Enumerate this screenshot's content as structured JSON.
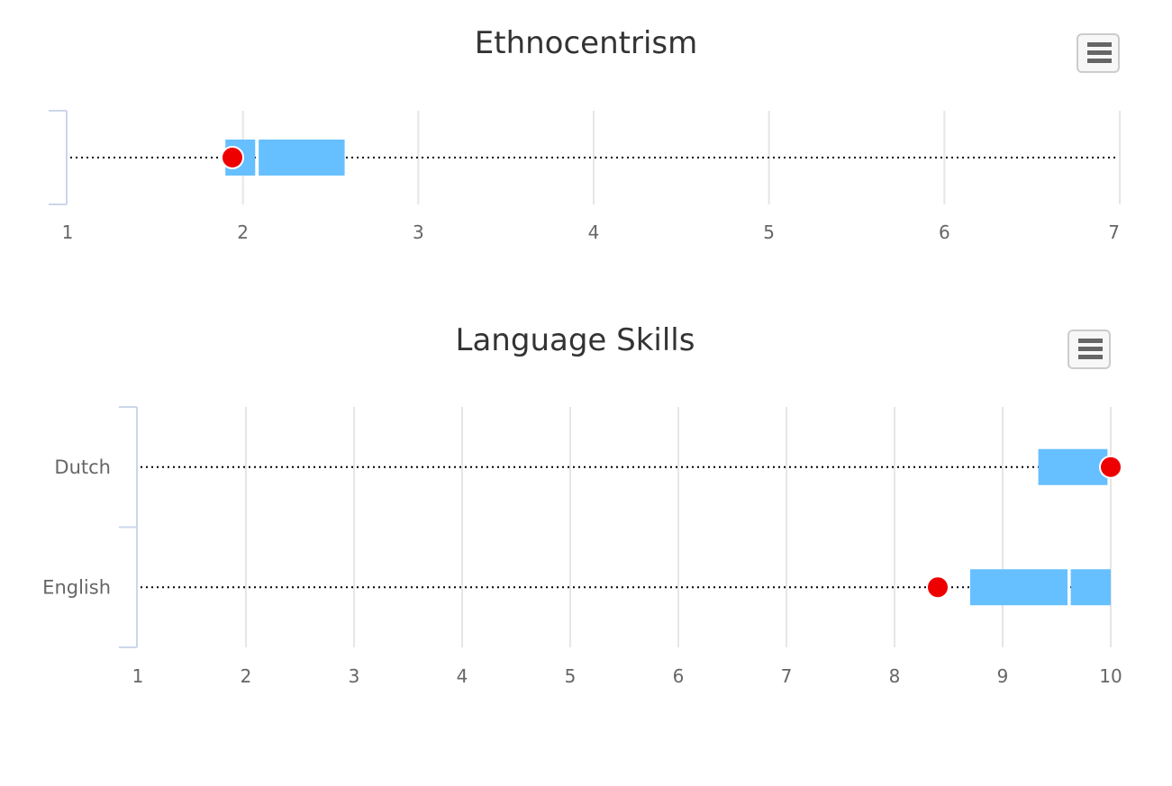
{
  "charts": [
    {
      "title": "Ethnocentrism",
      "menu_icon": "hamburger-menu-icon",
      "chart_data": {
        "type": "bar",
        "orientation": "horizontal",
        "categories": [
          ""
        ],
        "xlim": [
          1,
          7
        ],
        "xticks": [
          "1",
          "2",
          "3",
          "4",
          "5",
          "6",
          "7"
        ],
        "grid": true,
        "series": [
          {
            "range_start": 1.0,
            "range_end": 7.0,
            "box_segments": [
              [
                1.9,
                2.07
              ],
              [
                2.09,
                2.58
              ]
            ],
            "point": 1.94
          }
        ]
      }
    },
    {
      "title": "Language Skills",
      "menu_icon": "hamburger-menu-icon",
      "chart_data": {
        "type": "bar",
        "orientation": "horizontal",
        "categories": [
          "Dutch",
          "English"
        ],
        "xlim": [
          1,
          10
        ],
        "xticks": [
          "1",
          "2",
          "3",
          "4",
          "5",
          "6",
          "7",
          "8",
          "9",
          "10"
        ],
        "grid": true,
        "series": [
          {
            "range_start": 1.0,
            "range_end": 10.0,
            "box_segments": [
              [
                9.33,
                9.97
              ]
            ],
            "point": 10.0
          },
          {
            "range_start": 1.0,
            "range_end": 10.0,
            "box_segments": [
              [
                8.7,
                9.6
              ],
              [
                9.63,
                10.0
              ]
            ],
            "point": 8.4
          }
        ]
      }
    }
  ],
  "colors": {
    "box": "#66bfff",
    "point": "#ee0000",
    "grid": "#e6e6e6",
    "axis": "#ccd6eb",
    "range_line": "#000000"
  }
}
